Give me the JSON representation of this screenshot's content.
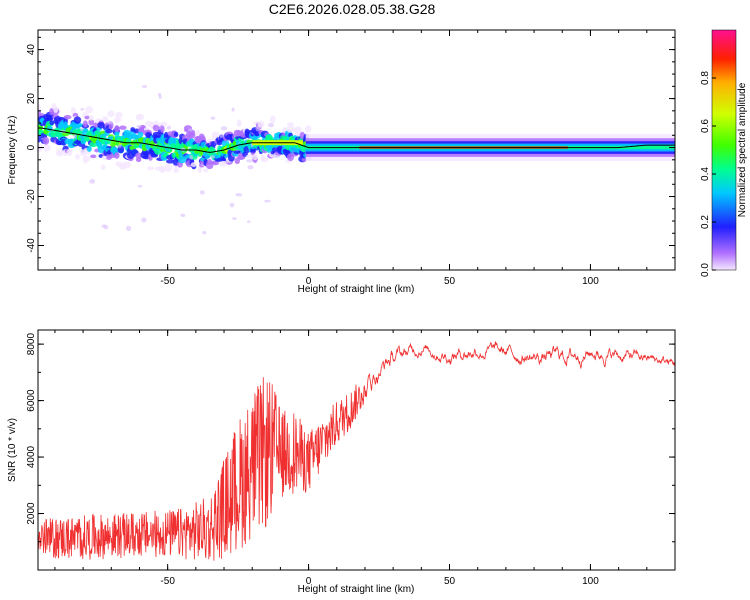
{
  "figure_title": "C2E6.2026.028.05.38.G28",
  "chart_data": [
    {
      "type": "heatmap",
      "name": "spectrogram",
      "xlabel": "Height of straight line (km)",
      "ylabel": "Frequency (Hz)",
      "xlim": [
        -96,
        130
      ],
      "ylim": [
        -50,
        48
      ],
      "x_ticks": [
        -50,
        0,
        50,
        100
      ],
      "y_ticks": [
        -40,
        -20,
        0,
        20,
        40
      ],
      "y_tick_labels": [
        "-40",
        "-20",
        "0",
        "20",
        "40"
      ],
      "colorbar": {
        "label": "Normalized spectral amplitude",
        "range": [
          0,
          1
        ],
        "ticks": [
          0.0,
          0.2,
          0.4,
          0.6,
          0.8
        ],
        "tick_labels": [
          "0.0",
          "0.2",
          "0.4",
          "0.6",
          "0.8"
        ]
      },
      "ridge_frequency_hz": {
        "x": [
          -95,
          -90,
          -85,
          -80,
          -75,
          -70,
          -65,
          -60,
          -55,
          -50,
          -45,
          -40,
          -35,
          -30,
          -25,
          -20,
          -15,
          -10,
          -5,
          0,
          10,
          20,
          40,
          60,
          80,
          100,
          110,
          120,
          130
        ],
        "y": [
          8,
          7,
          6,
          5,
          4,
          3,
          2,
          2,
          1,
          0,
          -1,
          -1,
          -2,
          -1,
          1,
          2,
          2,
          2,
          2,
          0,
          0,
          0,
          0,
          0,
          0,
          0,
          0,
          1,
          1
        ]
      }
    },
    {
      "type": "line",
      "name": "snr",
      "xlabel": "Height of straight line (km)",
      "ylabel": "SNR (10 * v/v)",
      "xlim": [
        -96,
        130
      ],
      "ylim": [
        0,
        8500
      ],
      "x_ticks": [
        -50,
        0,
        50,
        100
      ],
      "y_ticks": [
        2000,
        4000,
        6000,
        8000
      ],
      "y_tick_labels": [
        "2000",
        "4000",
        "6000",
        "8000"
      ],
      "color": "#f03030",
      "envelope": {
        "x": [
          -96,
          -80,
          -60,
          -45,
          -35,
          -30,
          -25,
          -20,
          -15,
          -12,
          -10,
          -5,
          0,
          5,
          10,
          15,
          20,
          25,
          30,
          35,
          40,
          50,
          60,
          70,
          80,
          90,
          100,
          110,
          120,
          130
        ],
        "mean": [
          1100,
          1150,
          1250,
          1300,
          1450,
          2200,
          3000,
          3700,
          4200,
          4300,
          4100,
          4200,
          3800,
          4500,
          5200,
          5700,
          6400,
          7100,
          7500,
          7700,
          7900,
          7600,
          7800,
          7700,
          7500,
          7600,
          7700,
          7600,
          7500,
          7300
        ],
        "amplitude": [
          700,
          800,
          800,
          900,
          1200,
          1800,
          2400,
          2600,
          2800,
          2200,
          1600,
          1500,
          1100,
          1000,
          800,
          700,
          500,
          350,
          300,
          250,
          200,
          250,
          250,
          250,
          250,
          300,
          250,
          250,
          200,
          200
        ]
      }
    }
  ]
}
